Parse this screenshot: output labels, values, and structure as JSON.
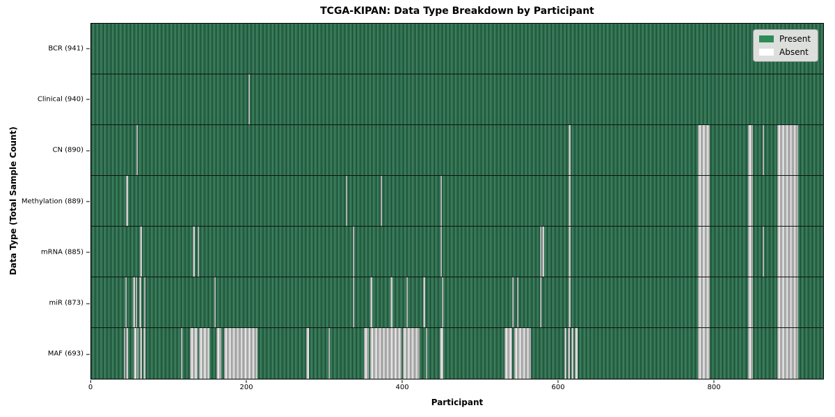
{
  "chart_data": {
    "type": "heatmap",
    "title": "TCGA-KIPAN: Data Type Breakdown by Participant",
    "xlabel": "Participant",
    "ylabel": "Data Type (Total Sample Count)",
    "x_range": [
      0,
      941
    ],
    "x_ticks": [
      0,
      200,
      400,
      600,
      800
    ],
    "grid": false,
    "legend_position": "upper right",
    "legend_labels": {
      "present": "Present",
      "absent": "Absent"
    },
    "colors": {
      "present": "#2e8b57",
      "absent": "#ffffff"
    },
    "rows": [
      {
        "data_type": "BCR",
        "label": "BCR (941)",
        "present_count": 941,
        "absent_ranges": []
      },
      {
        "data_type": "Clinical",
        "label": "Clinical (940)",
        "present_count": 940,
        "absent_ranges": [
          [
            202,
            204
          ]
        ]
      },
      {
        "data_type": "CN",
        "label": "CN (890)",
        "present_count": 890,
        "absent_ranges": [
          [
            58,
            60
          ],
          [
            614,
            616
          ],
          [
            780,
            795
          ],
          [
            844,
            851
          ],
          [
            863,
            865
          ],
          [
            882,
            909
          ]
        ]
      },
      {
        "data_type": "Methylation",
        "label": "Methylation (889)",
        "present_count": 889,
        "absent_ranges": [
          [
            45,
            47
          ],
          [
            327,
            329
          ],
          [
            372,
            374
          ],
          [
            449,
            451
          ],
          [
            614,
            616
          ],
          [
            780,
            795
          ],
          [
            844,
            851
          ],
          [
            882,
            909
          ]
        ]
      },
      {
        "data_type": "mRNA",
        "label": "mRNA (885)",
        "present_count": 885,
        "absent_ranges": [
          [
            63,
            65
          ],
          [
            131,
            133
          ],
          [
            137,
            139
          ],
          [
            336,
            338
          ],
          [
            449,
            451
          ],
          [
            577,
            579
          ],
          [
            580,
            582
          ],
          [
            614,
            616
          ],
          [
            780,
            795
          ],
          [
            844,
            851
          ],
          [
            863,
            865
          ],
          [
            882,
            909
          ]
        ]
      },
      {
        "data_type": "miR",
        "label": "miR (873)",
        "present_count": 873,
        "absent_ranges": [
          [
            44,
            46
          ],
          [
            54,
            56
          ],
          [
            57,
            59
          ],
          [
            62,
            64
          ],
          [
            68,
            70
          ],
          [
            158,
            160
          ],
          [
            336,
            338
          ],
          [
            359,
            361
          ],
          [
            385,
            387
          ],
          [
            405,
            407
          ],
          [
            427,
            429
          ],
          [
            451,
            453
          ],
          [
            541,
            543
          ],
          [
            547,
            549
          ],
          [
            577,
            579
          ],
          [
            614,
            616
          ],
          [
            780,
            795
          ],
          [
            844,
            851
          ],
          [
            882,
            909
          ]
        ]
      },
      {
        "data_type": "MAF",
        "label": "MAF (693)",
        "present_count": 693,
        "absent_ranges": [
          [
            42,
            44
          ],
          [
            45,
            47
          ],
          [
            55,
            58
          ],
          [
            59,
            61
          ],
          [
            63,
            65
          ],
          [
            67,
            70
          ],
          [
            115,
            117
          ],
          [
            127,
            137
          ],
          [
            139,
            152
          ],
          [
            161,
            167
          ],
          [
            171,
            214
          ],
          [
            276,
            280
          ],
          [
            305,
            307
          ],
          [
            351,
            357
          ],
          [
            359,
            399
          ],
          [
            401,
            422
          ],
          [
            430,
            432
          ],
          [
            448,
            453
          ],
          [
            531,
            541
          ],
          [
            544,
            565
          ],
          [
            608,
            611
          ],
          [
            613,
            615
          ],
          [
            617,
            620
          ],
          [
            622,
            625
          ],
          [
            780,
            795
          ],
          [
            844,
            851
          ],
          [
            882,
            909
          ]
        ]
      }
    ]
  }
}
